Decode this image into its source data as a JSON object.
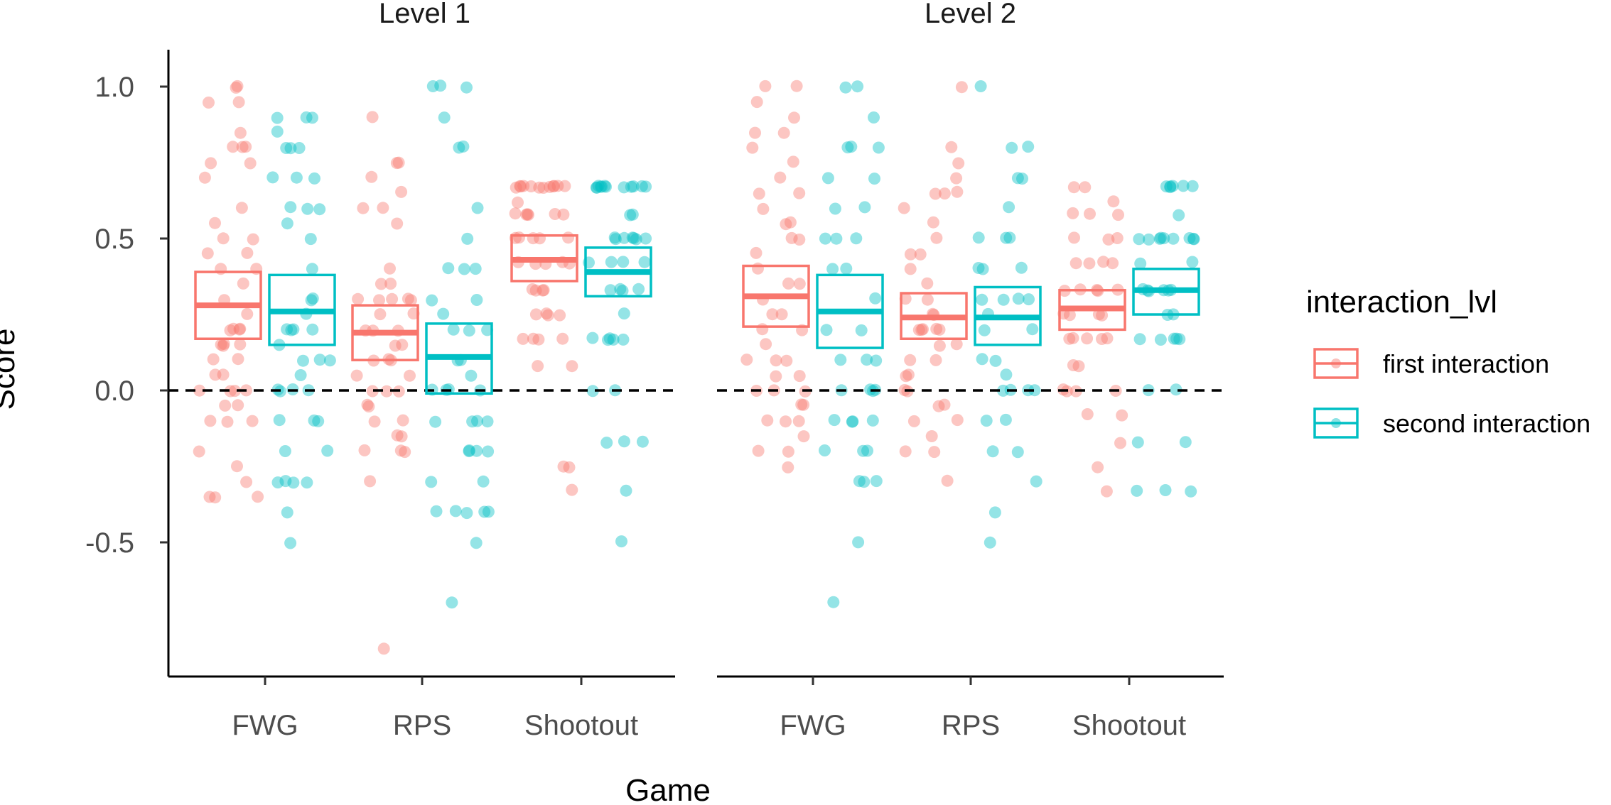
{
  "chart_data": {
    "type": "scatter",
    "subtype": "jittered points with mean and confidence box",
    "xlabel": "Game",
    "ylabel": "Score",
    "ylim": [
      -0.93,
      1.08
    ],
    "yticks": [
      -0.5,
      0.0,
      0.5,
      1.0
    ],
    "ytick_labels": [
      "-0.5",
      "0.0",
      "0.5",
      "1.0"
    ],
    "categories": [
      "FWG",
      "RPS",
      "Shootout"
    ],
    "reference_line": {
      "y": 0.0,
      "style": "dashed"
    },
    "legend": {
      "title": "interaction_lvl",
      "placement": "right",
      "entries": [
        "first interaction",
        "second interaction"
      ]
    },
    "colors": {
      "first interaction": "#F8766D",
      "second interaction": "#00BFC4"
    },
    "panels": [
      {
        "label": "Level 1",
        "groups": [
          {
            "category": "FWG",
            "series": "first interaction",
            "mean": 0.28,
            "lower": 0.17,
            "upper": 0.39,
            "points": [
              1.0,
              1.0,
              0.95,
              0.95,
              0.85,
              0.8,
              0.8,
              0.8,
              0.75,
              0.75,
              0.7,
              0.6,
              0.55,
              0.5,
              0.5,
              0.45,
              0.45,
              0.4,
              0.4,
              0.35,
              0.3,
              0.25,
              0.2,
              0.2,
              0.2,
              0.2,
              0.15,
              0.15,
              0.15,
              0.15,
              0.1,
              0.1,
              0.05,
              0.05,
              0.0,
              0.0,
              0.0,
              0.0,
              -0.05,
              -0.05,
              -0.1,
              -0.1,
              -0.1,
              -0.2,
              -0.25,
              -0.3,
              -0.35,
              -0.35,
              -0.35
            ]
          },
          {
            "category": "FWG",
            "series": "second interaction",
            "mean": 0.26,
            "lower": 0.15,
            "upper": 0.38,
            "points": [
              0.9,
              0.9,
              0.9,
              0.85,
              0.8,
              0.8,
              0.8,
              0.7,
              0.7,
              0.7,
              0.6,
              0.6,
              0.6,
              0.55,
              0.5,
              0.4,
              0.3,
              0.3,
              0.25,
              0.2,
              0.2,
              0.2,
              0.2,
              0.15,
              0.1,
              0.1,
              0.1,
              0.05,
              0.0,
              0.0,
              0.0,
              0.0,
              -0.1,
              -0.1,
              -0.1,
              -0.2,
              -0.2,
              -0.3,
              -0.3,
              -0.3,
              -0.3,
              -0.4,
              -0.5
            ]
          },
          {
            "category": "RPS",
            "series": "first interaction",
            "mean": 0.19,
            "lower": 0.1,
            "upper": 0.28,
            "points": [
              0.9,
              0.75,
              0.75,
              0.7,
              0.65,
              0.6,
              0.6,
              0.55,
              0.4,
              0.35,
              0.35,
              0.3,
              0.3,
              0.3,
              0.3,
              0.3,
              0.25,
              0.25,
              0.2,
              0.2,
              0.2,
              0.15,
              0.15,
              0.1,
              0.1,
              0.1,
              0.05,
              0.05,
              0.0,
              0.0,
              0.0,
              -0.05,
              -0.05,
              -0.1,
              -0.1,
              -0.15,
              -0.15,
              -0.2,
              -0.2,
              -0.2,
              -0.3,
              -0.85
            ]
          },
          {
            "category": "RPS",
            "series": "second interaction",
            "mean": 0.11,
            "lower": -0.01,
            "upper": 0.22,
            "points": [
              1.0,
              1.0,
              1.0,
              0.9,
              0.8,
              0.8,
              0.6,
              0.5,
              0.4,
              0.4,
              0.4,
              0.3,
              0.3,
              0.25,
              0.2,
              0.2,
              0.2,
              0.1,
              0.1,
              0.05,
              0.0,
              0.0,
              0.0,
              0.0,
              -0.1,
              -0.1,
              -0.1,
              -0.1,
              -0.2,
              -0.2,
              -0.2,
              -0.2,
              -0.3,
              -0.3,
              -0.4,
              -0.4,
              -0.4,
              -0.4,
              -0.4,
              -0.5,
              -0.7
            ]
          },
          {
            "category": "Shootout",
            "series": "first interaction",
            "mean": 0.43,
            "lower": 0.36,
            "upper": 0.51,
            "points": [
              0.67,
              0.67,
              0.67,
              0.67,
              0.67,
              0.67,
              0.67,
              0.67,
              0.67,
              0.67,
              0.67,
              0.67,
              0.62,
              0.58,
              0.58,
              0.58,
              0.58,
              0.58,
              0.58,
              0.5,
              0.5,
              0.5,
              0.5,
              0.5,
              0.42,
              0.42,
              0.42,
              0.42,
              0.42,
              0.33,
              0.33,
              0.33,
              0.33,
              0.25,
              0.25,
              0.25,
              0.25,
              0.17,
              0.17,
              0.17,
              0.17,
              0.08,
              0.08,
              -0.25,
              -0.25,
              -0.33
            ]
          },
          {
            "category": "Shootout",
            "series": "second interaction",
            "mean": 0.39,
            "lower": 0.31,
            "upper": 0.47,
            "points": [
              0.67,
              0.67,
              0.67,
              0.67,
              0.67,
              0.67,
              0.67,
              0.67,
              0.67,
              0.67,
              0.67,
              0.67,
              0.58,
              0.58,
              0.5,
              0.5,
              0.5,
              0.5,
              0.5,
              0.5,
              0.5,
              0.42,
              0.42,
              0.42,
              0.42,
              0.33,
              0.33,
              0.33,
              0.33,
              0.25,
              0.17,
              0.17,
              0.17,
              0.17,
              0.17,
              0.0,
              0.0,
              -0.17,
              -0.17,
              -0.17,
              -0.33,
              -0.5
            ]
          }
        ]
      },
      {
        "label": "Level 2",
        "groups": [
          {
            "category": "FWG",
            "series": "first interaction",
            "mean": 0.31,
            "lower": 0.21,
            "upper": 0.41,
            "points": [
              1.0,
              1.0,
              0.95,
              0.9,
              0.85,
              0.85,
              0.8,
              0.75,
              0.7,
              0.65,
              0.65,
              0.6,
              0.55,
              0.55,
              0.5,
              0.5,
              0.45,
              0.4,
              0.35,
              0.35,
              0.3,
              0.25,
              0.25,
              0.2,
              0.2,
              0.15,
              0.1,
              0.1,
              0.1,
              0.05,
              0.05,
              0.0,
              0.0,
              0.0,
              -0.05,
              -0.05,
              -0.1,
              -0.1,
              -0.1,
              -0.15,
              -0.2,
              -0.2,
              -0.25
            ]
          },
          {
            "category": "FWG",
            "series": "second interaction",
            "mean": 0.26,
            "lower": 0.14,
            "upper": 0.38,
            "points": [
              1.0,
              1.0,
              0.9,
              0.8,
              0.8,
              0.8,
              0.7,
              0.7,
              0.6,
              0.6,
              0.5,
              0.5,
              0.5,
              0.4,
              0.4,
              0.3,
              0.2,
              0.2,
              0.1,
              0.1,
              0.1,
              0.0,
              0.0,
              0.0,
              0.0,
              -0.1,
              -0.1,
              -0.1,
              -0.1,
              -0.2,
              -0.2,
              -0.2,
              -0.3,
              -0.3,
              -0.3,
              -0.5,
              -0.7
            ]
          },
          {
            "category": "RPS",
            "series": "first interaction",
            "mean": 0.24,
            "lower": 0.17,
            "upper": 0.32,
            "points": [
              1.0,
              0.8,
              0.75,
              0.7,
              0.65,
              0.65,
              0.65,
              0.6,
              0.55,
              0.5,
              0.45,
              0.45,
              0.4,
              0.35,
              0.3,
              0.3,
              0.25,
              0.25,
              0.2,
              0.2,
              0.2,
              0.2,
              0.2,
              0.15,
              0.15,
              0.1,
              0.1,
              0.05,
              0.05,
              0.0,
              0.0,
              -0.05,
              -0.05,
              -0.1,
              -0.1,
              -0.15,
              -0.2,
              -0.2,
              -0.3
            ]
          },
          {
            "category": "RPS",
            "series": "second interaction",
            "mean": 0.24,
            "lower": 0.15,
            "upper": 0.34,
            "points": [
              1.0,
              0.8,
              0.8,
              0.7,
              0.7,
              0.6,
              0.5,
              0.5,
              0.5,
              0.4,
              0.4,
              0.4,
              0.3,
              0.3,
              0.3,
              0.3,
              0.25,
              0.2,
              0.2,
              0.1,
              0.1,
              0.05,
              0.0,
              0.0,
              0.0,
              0.0,
              -0.1,
              -0.1,
              -0.2,
              -0.2,
              -0.3,
              -0.4,
              -0.5
            ]
          },
          {
            "category": "Shootout",
            "series": "first interaction",
            "mean": 0.27,
            "lower": 0.2,
            "upper": 0.33,
            "points": [
              0.67,
              0.67,
              0.62,
              0.58,
              0.58,
              0.58,
              0.5,
              0.5,
              0.5,
              0.42,
              0.42,
              0.42,
              0.42,
              0.33,
              0.33,
              0.33,
              0.33,
              0.33,
              0.25,
              0.25,
              0.25,
              0.25,
              0.17,
              0.17,
              0.17,
              0.17,
              0.17,
              0.08,
              0.08,
              0.0,
              0.0,
              0.0,
              0.0,
              -0.08,
              -0.08,
              -0.17,
              -0.25,
              -0.33
            ]
          },
          {
            "category": "Shootout",
            "series": "second interaction",
            "mean": 0.33,
            "lower": 0.25,
            "upper": 0.4,
            "points": [
              0.67,
              0.67,
              0.67,
              0.67,
              0.67,
              0.67,
              0.58,
              0.5,
              0.5,
              0.5,
              0.5,
              0.5,
              0.5,
              0.5,
              0.5,
              0.5,
              0.42,
              0.42,
              0.33,
              0.33,
              0.33,
              0.33,
              0.33,
              0.33,
              0.25,
              0.25,
              0.17,
              0.17,
              0.17,
              0.17,
              0.17,
              0.0,
              0.0,
              -0.17,
              -0.17,
              -0.33,
              -0.33,
              -0.33
            ]
          }
        ]
      }
    ]
  }
}
